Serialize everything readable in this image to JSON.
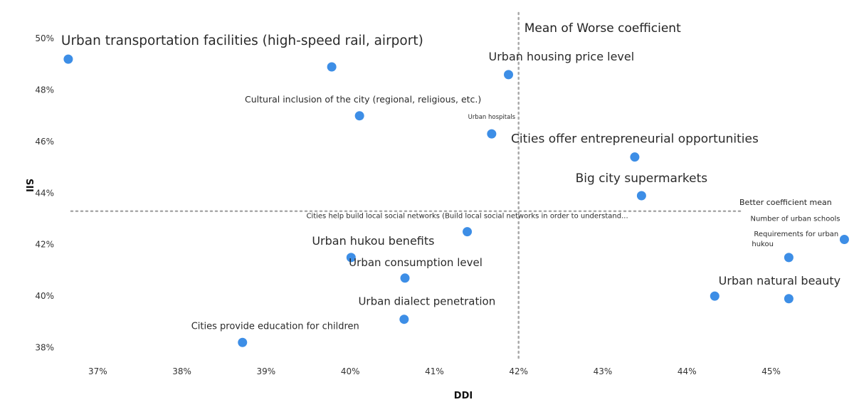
{
  "chart_data": {
    "type": "scatter",
    "xlabel": "DDI",
    "ylabel": "SII",
    "xlim": [
      36.6,
      45.9
    ],
    "ylim": [
      37.6,
      51.0
    ],
    "x_ticks": [
      "37%",
      "38%",
      "39%",
      "40%",
      "41%",
      "42%",
      "43%",
      "44%",
      "45%"
    ],
    "y_ticks": [
      "38%",
      "40%",
      "42%",
      "44%",
      "46%",
      "48%",
      "50%"
    ],
    "ref_lines": {
      "x_mean": 42.0,
      "y_mean": 43.3,
      "x_mean_label": "Mean of Worse coefficient",
      "y_mean_label": "Better coefficient mean"
    },
    "color": "#3d8ee6",
    "points": [
      {
        "x": 36.65,
        "y": 49.2,
        "label": "Urban transportation facilities (high-speed rail, airport)"
      },
      {
        "x": 39.78,
        "y": 48.9,
        "label": ""
      },
      {
        "x": 41.88,
        "y": 48.6,
        "label": "Urban housing price level"
      },
      {
        "x": 40.11,
        "y": 47.0,
        "label": "Cultural inclusion of the city (regional, religious, etc.)"
      },
      {
        "x": 41.68,
        "y": 46.3,
        "label": "Urban hospitals"
      },
      {
        "x": 43.38,
        "y": 45.4,
        "label": "Cities offer entrepreneurial opportunities"
      },
      {
        "x": 43.46,
        "y": 43.9,
        "label": "Big city supermarkets"
      },
      {
        "x": 41.39,
        "y": 42.5,
        "label": "Cities help build local social networks (Build local social networks in order to understand..."
      },
      {
        "x": 45.87,
        "y": 42.2,
        "label": "Number of urban schools"
      },
      {
        "x": 45.21,
        "y": 41.5,
        "label": "Requirements for urban hukou"
      },
      {
        "x": 40.01,
        "y": 41.5,
        "label": "Urban hukou benefits"
      },
      {
        "x": 40.65,
        "y": 40.7,
        "label": "Urban consumption level"
      },
      {
        "x": 44.33,
        "y": 40.0,
        "label": ""
      },
      {
        "x": 45.21,
        "y": 39.9,
        "label": "Urban natural beauty"
      },
      {
        "x": 40.64,
        "y": 39.1,
        "label": "Urban dialect penetration"
      },
      {
        "x": 38.72,
        "y": 38.2,
        "label": "Cities provide education for children"
      }
    ]
  }
}
